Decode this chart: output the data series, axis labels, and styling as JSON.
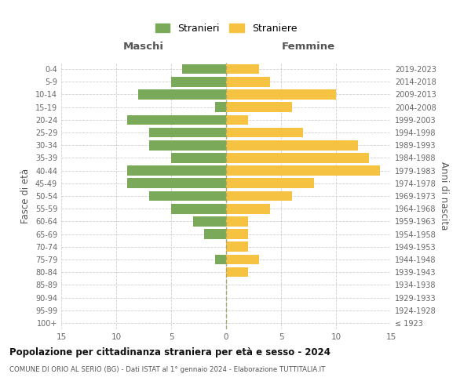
{
  "age_groups": [
    "100+",
    "95-99",
    "90-94",
    "85-89",
    "80-84",
    "75-79",
    "70-74",
    "65-69",
    "60-64",
    "55-59",
    "50-54",
    "45-49",
    "40-44",
    "35-39",
    "30-34",
    "25-29",
    "20-24",
    "15-19",
    "10-14",
    "5-9",
    "0-4"
  ],
  "birth_years": [
    "≤ 1923",
    "1924-1928",
    "1929-1933",
    "1934-1938",
    "1939-1943",
    "1944-1948",
    "1949-1953",
    "1954-1958",
    "1959-1963",
    "1964-1968",
    "1969-1973",
    "1974-1978",
    "1979-1983",
    "1984-1988",
    "1989-1993",
    "1994-1998",
    "1999-2003",
    "2004-2008",
    "2009-2013",
    "2014-2018",
    "2019-2023"
  ],
  "maschi": [
    0,
    0,
    0,
    0,
    0,
    1,
    0,
    2,
    3,
    5,
    7,
    9,
    9,
    5,
    7,
    7,
    9,
    1,
    8,
    5,
    4
  ],
  "femmine": [
    0,
    0,
    0,
    0,
    2,
    3,
    2,
    2,
    2,
    4,
    6,
    8,
    14,
    13,
    12,
    7,
    2,
    6,
    10,
    4,
    3
  ],
  "color_maschi": "#7aaa59",
  "color_femmine": "#f5c242",
  "title": "Popolazione per cittadinanza straniera per età e sesso - 2024",
  "subtitle": "COMUNE DI ORIO AL SERIO (BG) - Dati ISTAT al 1° gennaio 2024 - Elaborazione TUTTITALIA.IT",
  "xlabel_left": "Maschi",
  "xlabel_right": "Femmine",
  "ylabel_left": "Fasce di età",
  "ylabel_right": "Anni di nascita",
  "legend_maschi": "Stranieri",
  "legend_femmine": "Straniere",
  "xlim": 15,
  "background_color": "#ffffff",
  "grid_color": "#d0d0d0"
}
